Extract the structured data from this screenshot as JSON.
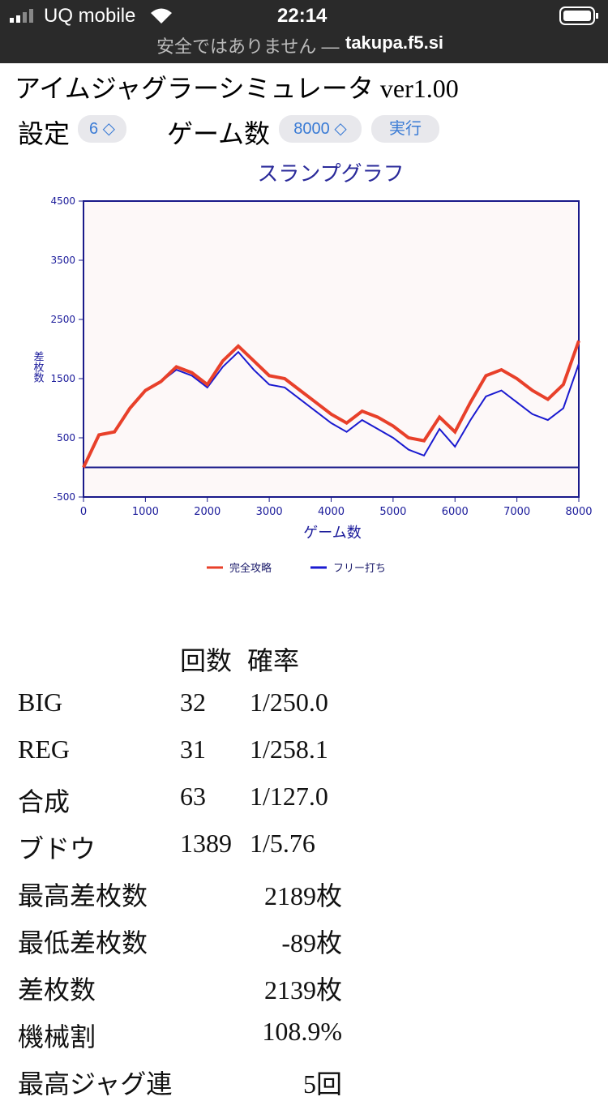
{
  "status_bar": {
    "carrier": "UQ mobile",
    "time": "22:14",
    "security": "安全ではありません —",
    "domain": "takupa.f5.si"
  },
  "header": {
    "title": "アイムジャグラーシミュレータ ver1.00"
  },
  "controls": {
    "setting_label": "設定",
    "setting_value": "6",
    "games_label": "ゲーム数",
    "games_value": "8000",
    "run_button": "実行"
  },
  "chart_data": {
    "type": "line",
    "title": "スランプグラフ",
    "x_label": "ゲーム数",
    "y_label": "差枚数",
    "x": [
      0,
      250,
      500,
      750,
      1000,
      1250,
      1500,
      1750,
      2000,
      2250,
      2500,
      2750,
      3000,
      3250,
      3500,
      3750,
      4000,
      4250,
      4500,
      4750,
      5000,
      5250,
      5500,
      5750,
      6000,
      6250,
      6500,
      6750,
      7000,
      7250,
      7500,
      7750,
      8000
    ],
    "series": [
      {
        "name": "完全攻略",
        "color": "#e8402a",
        "values": [
          0,
          550,
          600,
          1000,
          1300,
          1450,
          1700,
          1600,
          1400,
          1800,
          2050,
          1800,
          1550,
          1500,
          1300,
          1100,
          900,
          750,
          950,
          850,
          700,
          500,
          450,
          850,
          600,
          1100,
          1550,
          1650,
          1500,
          1300,
          1150,
          1400,
          2139
        ]
      },
      {
        "name": "フリー打ち",
        "color": "#1a1ad0",
        "values": [
          0,
          550,
          600,
          1000,
          1300,
          1450,
          1650,
          1550,
          1350,
          1700,
          1950,
          1650,
          1400,
          1350,
          1150,
          950,
          750,
          600,
          800,
          650,
          500,
          300,
          200,
          650,
          350,
          800,
          1200,
          1300,
          1100,
          900,
          800,
          1000,
          1750
        ]
      }
    ],
    "xlim": [
      0,
      8000
    ],
    "xticks": [
      0,
      1000,
      2000,
      3000,
      4000,
      5000,
      6000,
      7000,
      8000
    ],
    "ylim": [
      -500,
      4500
    ],
    "yticks": [
      -500,
      500,
      1500,
      2500,
      3500,
      4500
    ],
    "legend": "bottom"
  },
  "table": {
    "headers": [
      "回数",
      "確率"
    ],
    "rows": [
      [
        "BIG",
        "32",
        "1/250.0"
      ],
      [
        "REG",
        "31",
        "1/258.1"
      ],
      [
        "合成",
        "63",
        "1/127.0"
      ],
      [
        "ブドウ",
        "1389",
        "1/5.76"
      ],
      [
        "最高差枚数",
        "2189枚"
      ],
      [
        "最低差枚数",
        "-89枚"
      ],
      [
        "差枚数",
        "2139枚"
      ],
      [
        "機械割",
        "108.9%"
      ],
      [
        "最高ジャグ連",
        "5回"
      ]
    ]
  }
}
